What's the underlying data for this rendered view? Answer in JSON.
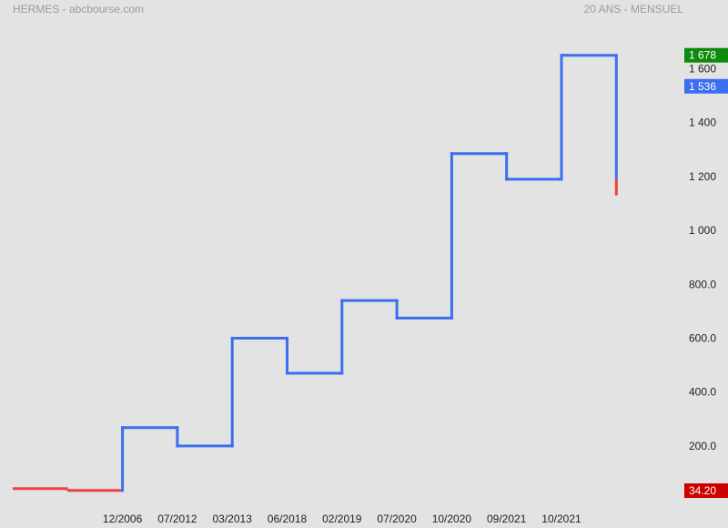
{
  "header": {
    "title": "HERMES - abcbourse.com",
    "period": "20 ANS - MENSUEL"
  },
  "chart_data": {
    "type": "line",
    "style": "step",
    "x_categories": [
      "12/2006",
      "07/2012",
      "03/2013",
      "06/2018",
      "02/2019",
      "07/2020",
      "10/2020",
      "09/2021",
      "10/2021"
    ],
    "y_ticks": [
      {
        "value": 200,
        "label": "200.0"
      },
      {
        "value": 400,
        "label": "400.0"
      },
      {
        "value": 600,
        "label": "600.0"
      },
      {
        "value": 800,
        "label": "800.0"
      },
      {
        "value": 1000,
        "label": "1 000"
      },
      {
        "value": 1200,
        "label": "1 200"
      },
      {
        "value": 1400,
        "label": "1 400"
      },
      {
        "value": 1600,
        "label": "1 600"
      }
    ],
    "ylim": [
      -30,
      1720
    ],
    "down_segments": [
      {
        "x0": 0.0,
        "x1": 1.0,
        "y": 42
      },
      {
        "x0": 1.0,
        "x1": 2.0,
        "y": 35
      }
    ],
    "up_steps": [
      {
        "x0": 2.0,
        "x1": 3.0,
        "y": 268
      },
      {
        "x0": 3.0,
        "x1": 4.0,
        "y": 200
      },
      {
        "x0": 4.0,
        "x1": 5.0,
        "y": 600
      },
      {
        "x0": 5.0,
        "x1": 6.0,
        "y": 470
      },
      {
        "x0": 6.0,
        "x1": 7.0,
        "y": 740
      },
      {
        "x0": 7.0,
        "x1": 8.0,
        "y": 675
      },
      {
        "x0": 8.0,
        "x1": 9.0,
        "y": 1285
      },
      {
        "x0": 9.0,
        "x1": 10.0,
        "y": 1190
      },
      {
        "x0": 10.0,
        "x1": 11.0,
        "y": 1650
      }
    ],
    "last_drop": {
      "x": 11.0,
      "from": 1650,
      "blue_to": 1190,
      "red_to": 1130
    },
    "badges": [
      {
        "label": "1 678",
        "value": 1650,
        "color": "#0e8a0e"
      },
      {
        "label": "1 536",
        "value": 1535,
        "color": "#3b6ef0"
      },
      {
        "label": "34.20",
        "value": 34.2,
        "color": "#cc0000"
      }
    ],
    "colors": {
      "up": "#3b6ef0",
      "down": "#f04040"
    }
  }
}
